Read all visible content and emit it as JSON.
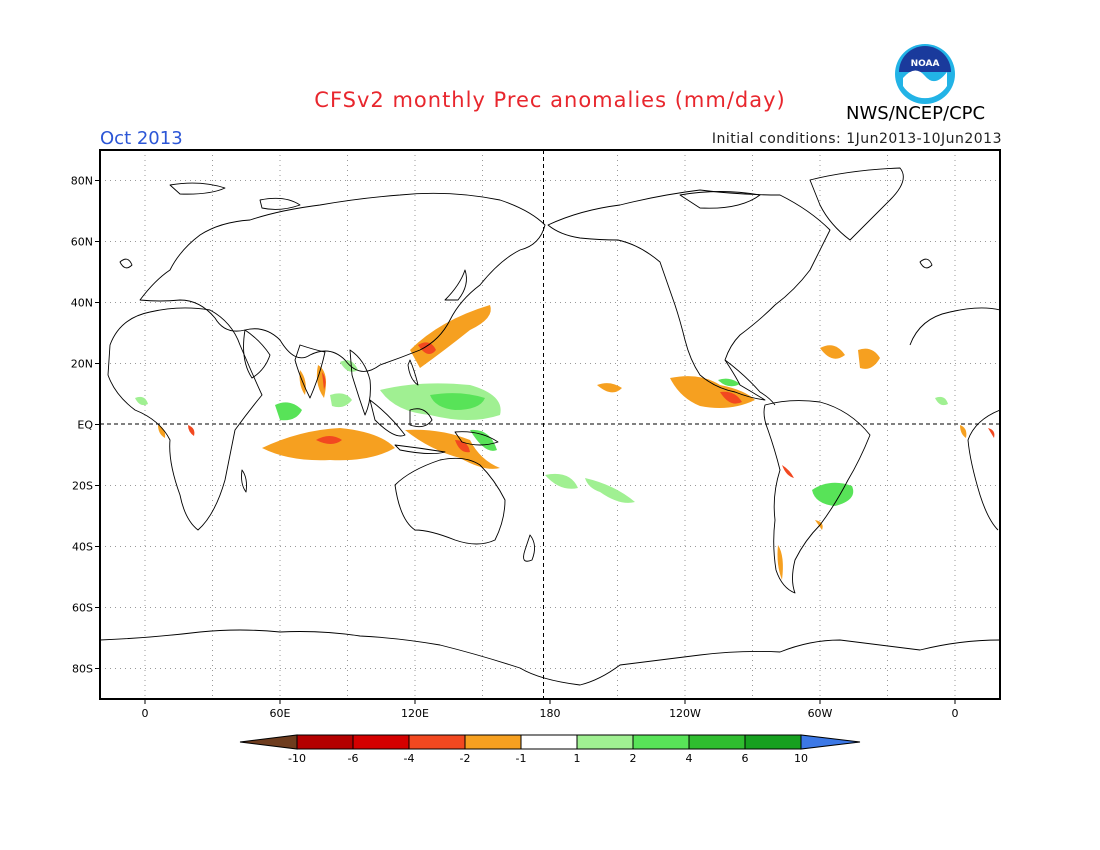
{
  "title": "CFSv2 monthly Prec anomalies (mm/day)",
  "month": "Oct 2013",
  "initial_conditions": "Initial conditions: 1Jun2013-10Jun2013",
  "agency": "NWS/NCEP/CPC",
  "logo_text": "NOAA",
  "colors": {
    "title": "#e8262d",
    "month": "#2c56d6",
    "frame": "#000000"
  },
  "map": {
    "projection": "equirectangular",
    "lon_range": [
      -20,
      380
    ],
    "lat_range": [
      -90,
      90
    ],
    "y_labels": [
      "80N",
      "60N",
      "40N",
      "20N",
      "EQ",
      "20S",
      "40S",
      "60S",
      "80S"
    ],
    "x_labels": [
      "0",
      "60E",
      "120E",
      "180",
      "120W",
      "60W",
      "0"
    ]
  },
  "colorbar": {
    "labels": [
      "-10",
      "-6",
      "-4",
      "-2",
      "-1",
      "1",
      "2",
      "4",
      "6",
      "10"
    ],
    "colors": [
      "#6e3c1e",
      "#b40000",
      "#d40000",
      "#f24820",
      "#f6a020",
      "#ffffff",
      "#a0f092",
      "#58e358",
      "#2fbd2f",
      "#16a01f",
      "#3c78e6"
    ]
  }
}
